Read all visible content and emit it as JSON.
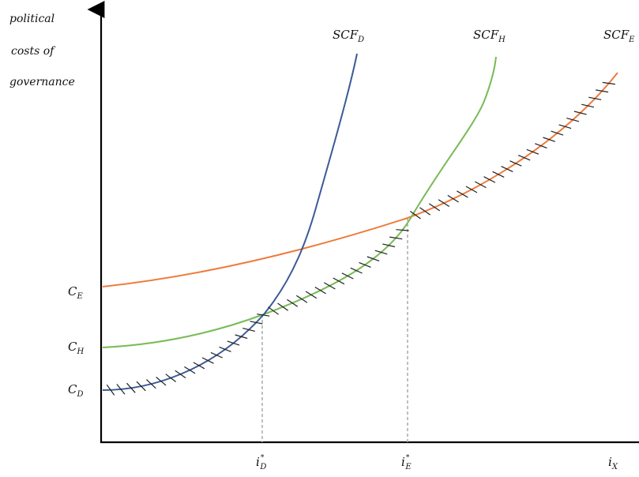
{
  "diagram": {
    "y_axis_label_lines": [
      "political",
      "costs of",
      "governance"
    ],
    "x_axis_label": {
      "base": "i",
      "sub": "X"
    },
    "curves": [
      {
        "id": "scf-d",
        "base": "SCF",
        "sub": "D",
        "color": "#3a5a98"
      },
      {
        "id": "scf-h",
        "base": "SCF",
        "sub": "H",
        "color": "#77bb55"
      },
      {
        "id": "scf-e",
        "base": "SCF",
        "sub": "E",
        "color": "#ee7b3a"
      }
    ],
    "y_ticks": [
      {
        "id": "c-e",
        "base": "C",
        "sub": "E"
      },
      {
        "id": "c-h",
        "base": "C",
        "sub": "H"
      },
      {
        "id": "c-d",
        "base": "C",
        "sub": "D"
      }
    ],
    "x_ticks": [
      {
        "id": "i-d-star",
        "base": "i",
        "sup": "*",
        "sub": "D"
      },
      {
        "id": "i-e-star",
        "base": "i",
        "sup": "*",
        "sub": "E"
      }
    ],
    "guide_color": "#aaaaaa",
    "hatch_color": "#222222"
  }
}
